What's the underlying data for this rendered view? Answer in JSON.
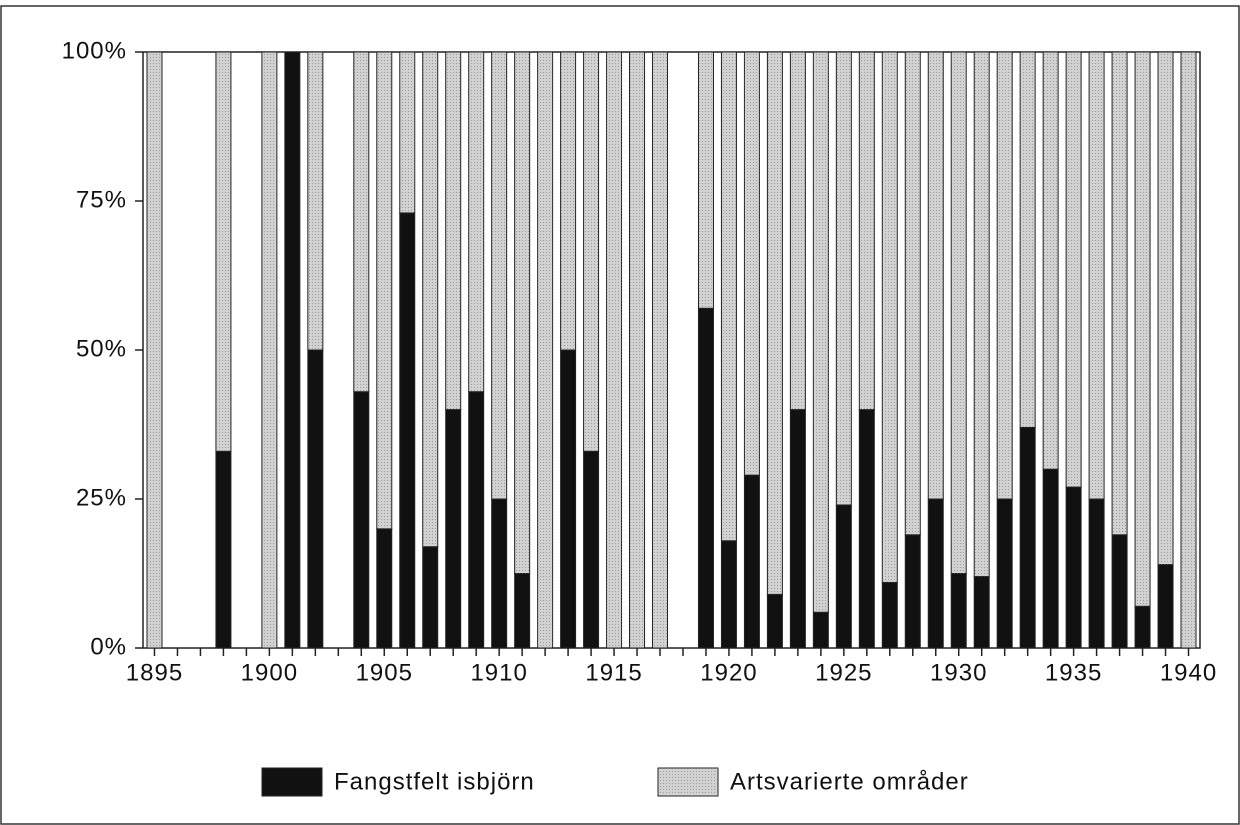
{
  "chart_data": {
    "type": "stacked-bar",
    "categories": [
      "1895",
      null,
      null,
      null,
      null,
      "1900",
      null,
      null,
      null,
      null,
      "1905",
      null,
      null,
      null,
      null,
      "1910",
      null,
      null,
      null,
      null,
      "1915",
      null,
      null,
      null,
      null,
      "1920",
      null,
      null,
      null,
      null,
      "1925",
      null,
      null,
      null,
      null,
      "1930",
      null,
      null,
      null,
      null,
      "1935",
      null,
      null,
      null,
      null,
      "1940"
    ],
    "series": [
      {
        "name": "Fangstfelt isbjörn",
        "color": "#111111",
        "values": [
          0,
          null,
          null,
          33,
          null,
          0,
          100,
          50,
          null,
          43,
          20,
          73,
          17,
          40,
          43,
          25,
          12.5,
          0,
          50,
          33,
          0,
          0,
          0,
          null,
          57,
          18,
          29,
          9,
          40,
          6,
          24,
          40,
          11,
          19,
          25,
          12.5,
          12,
          25,
          37,
          30,
          27,
          25,
          19,
          7,
          14,
          0
        ]
      },
      {
        "name": "Artsvarierte områder",
        "color": "#d2d2d2",
        "values": [
          100,
          null,
          null,
          67,
          null,
          100,
          0,
          50,
          null,
          57,
          80,
          27,
          83,
          60,
          57,
          75,
          87.5,
          100,
          50,
          67,
          100,
          100,
          100,
          null,
          43,
          82,
          71,
          91,
          60,
          94,
          76,
          60,
          89,
          81,
          75,
          87.5,
          88,
          75,
          63,
          70,
          73,
          75,
          81,
          93,
          86,
          100
        ]
      }
    ],
    "ylim": [
      0,
      100
    ],
    "yticks": [
      {
        "value": 0,
        "label": "0%"
      },
      {
        "value": 25,
        "label": "25%"
      },
      {
        "value": 50,
        "label": "50%"
      },
      {
        "value": 75,
        "label": "75%"
      },
      {
        "value": 100,
        "label": "100%"
      }
    ],
    "legend": "bottom"
  }
}
